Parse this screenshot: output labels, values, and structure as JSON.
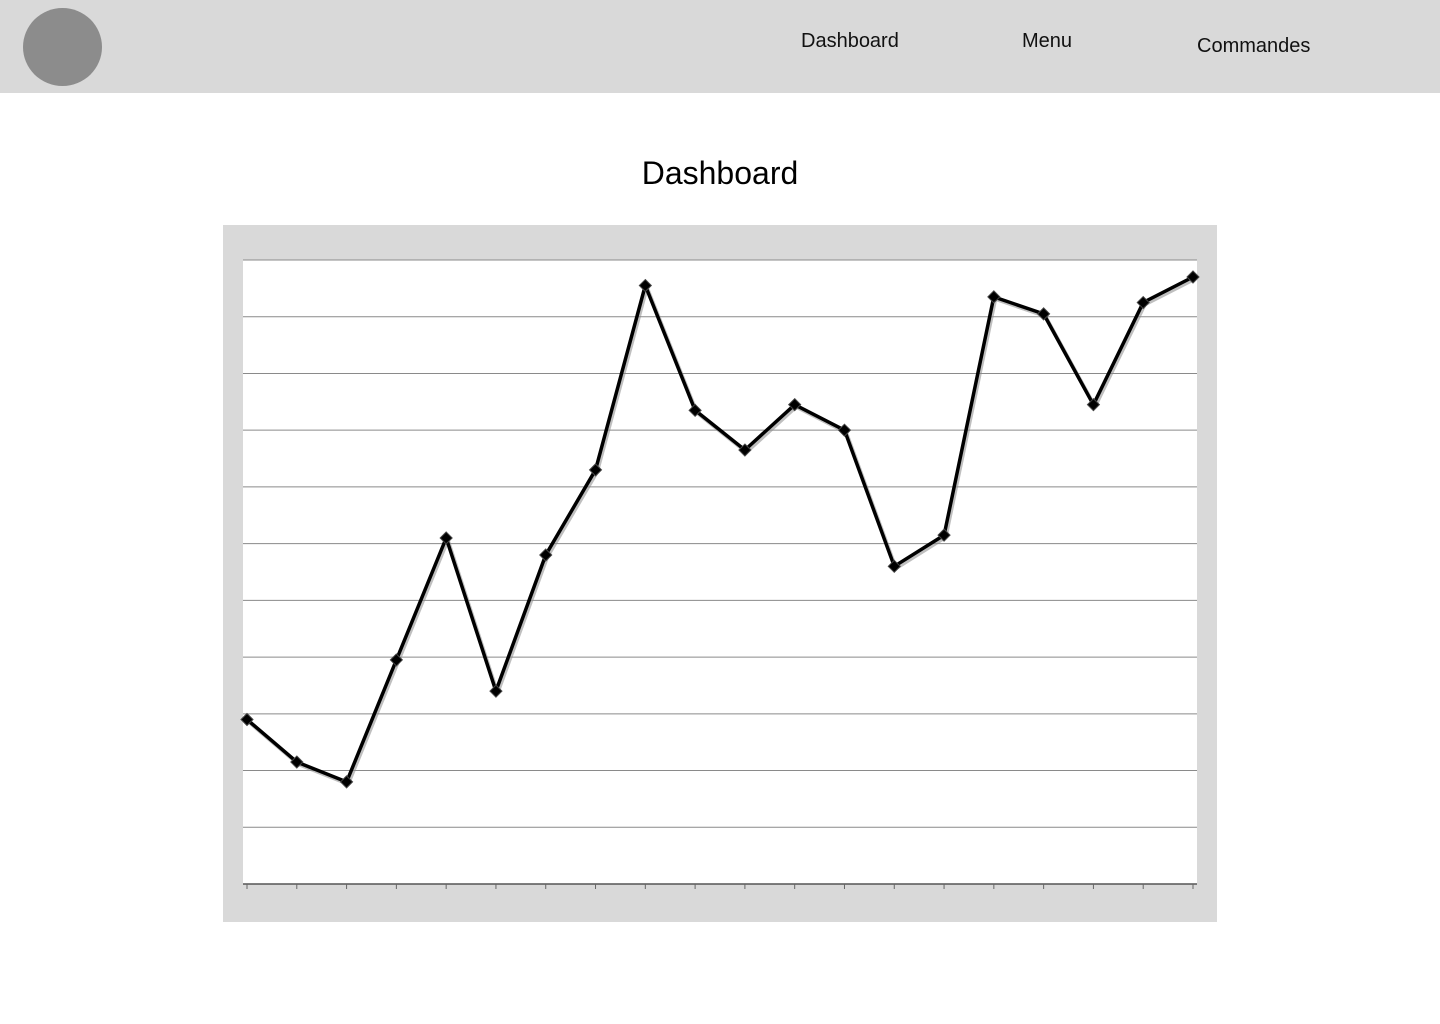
{
  "nav": {
    "links": [
      "Dashboard",
      "Menu",
      "Commandes"
    ]
  },
  "page": {
    "title": "Dashboard"
  },
  "colors": {
    "topbar": "#d9d9d9",
    "avatar": "#8c8c8c",
    "chart_frame": "#d9d9d9",
    "line": "#000000"
  },
  "chart_data": {
    "type": "line",
    "title": "",
    "xlabel": "",
    "ylabel": "",
    "x": [
      1,
      2,
      3,
      4,
      5,
      6,
      7,
      8,
      9,
      10,
      11,
      12,
      13,
      14,
      15,
      16,
      17,
      18,
      19,
      20
    ],
    "series": [
      {
        "values": [
          1.9,
          1.15,
          0.8,
          2.95,
          5.1,
          2.4,
          4.8,
          6.3,
          9.55,
          7.35,
          6.65,
          7.45,
          7.0,
          4.6,
          5.15,
          9.35,
          9.05,
          7.45,
          9.25,
          9.7
        ]
      }
    ],
    "ylim": [
      -1,
      10
    ],
    "y_gridlines": 11,
    "grid": true,
    "legend": "none",
    "marker": "diamond"
  }
}
